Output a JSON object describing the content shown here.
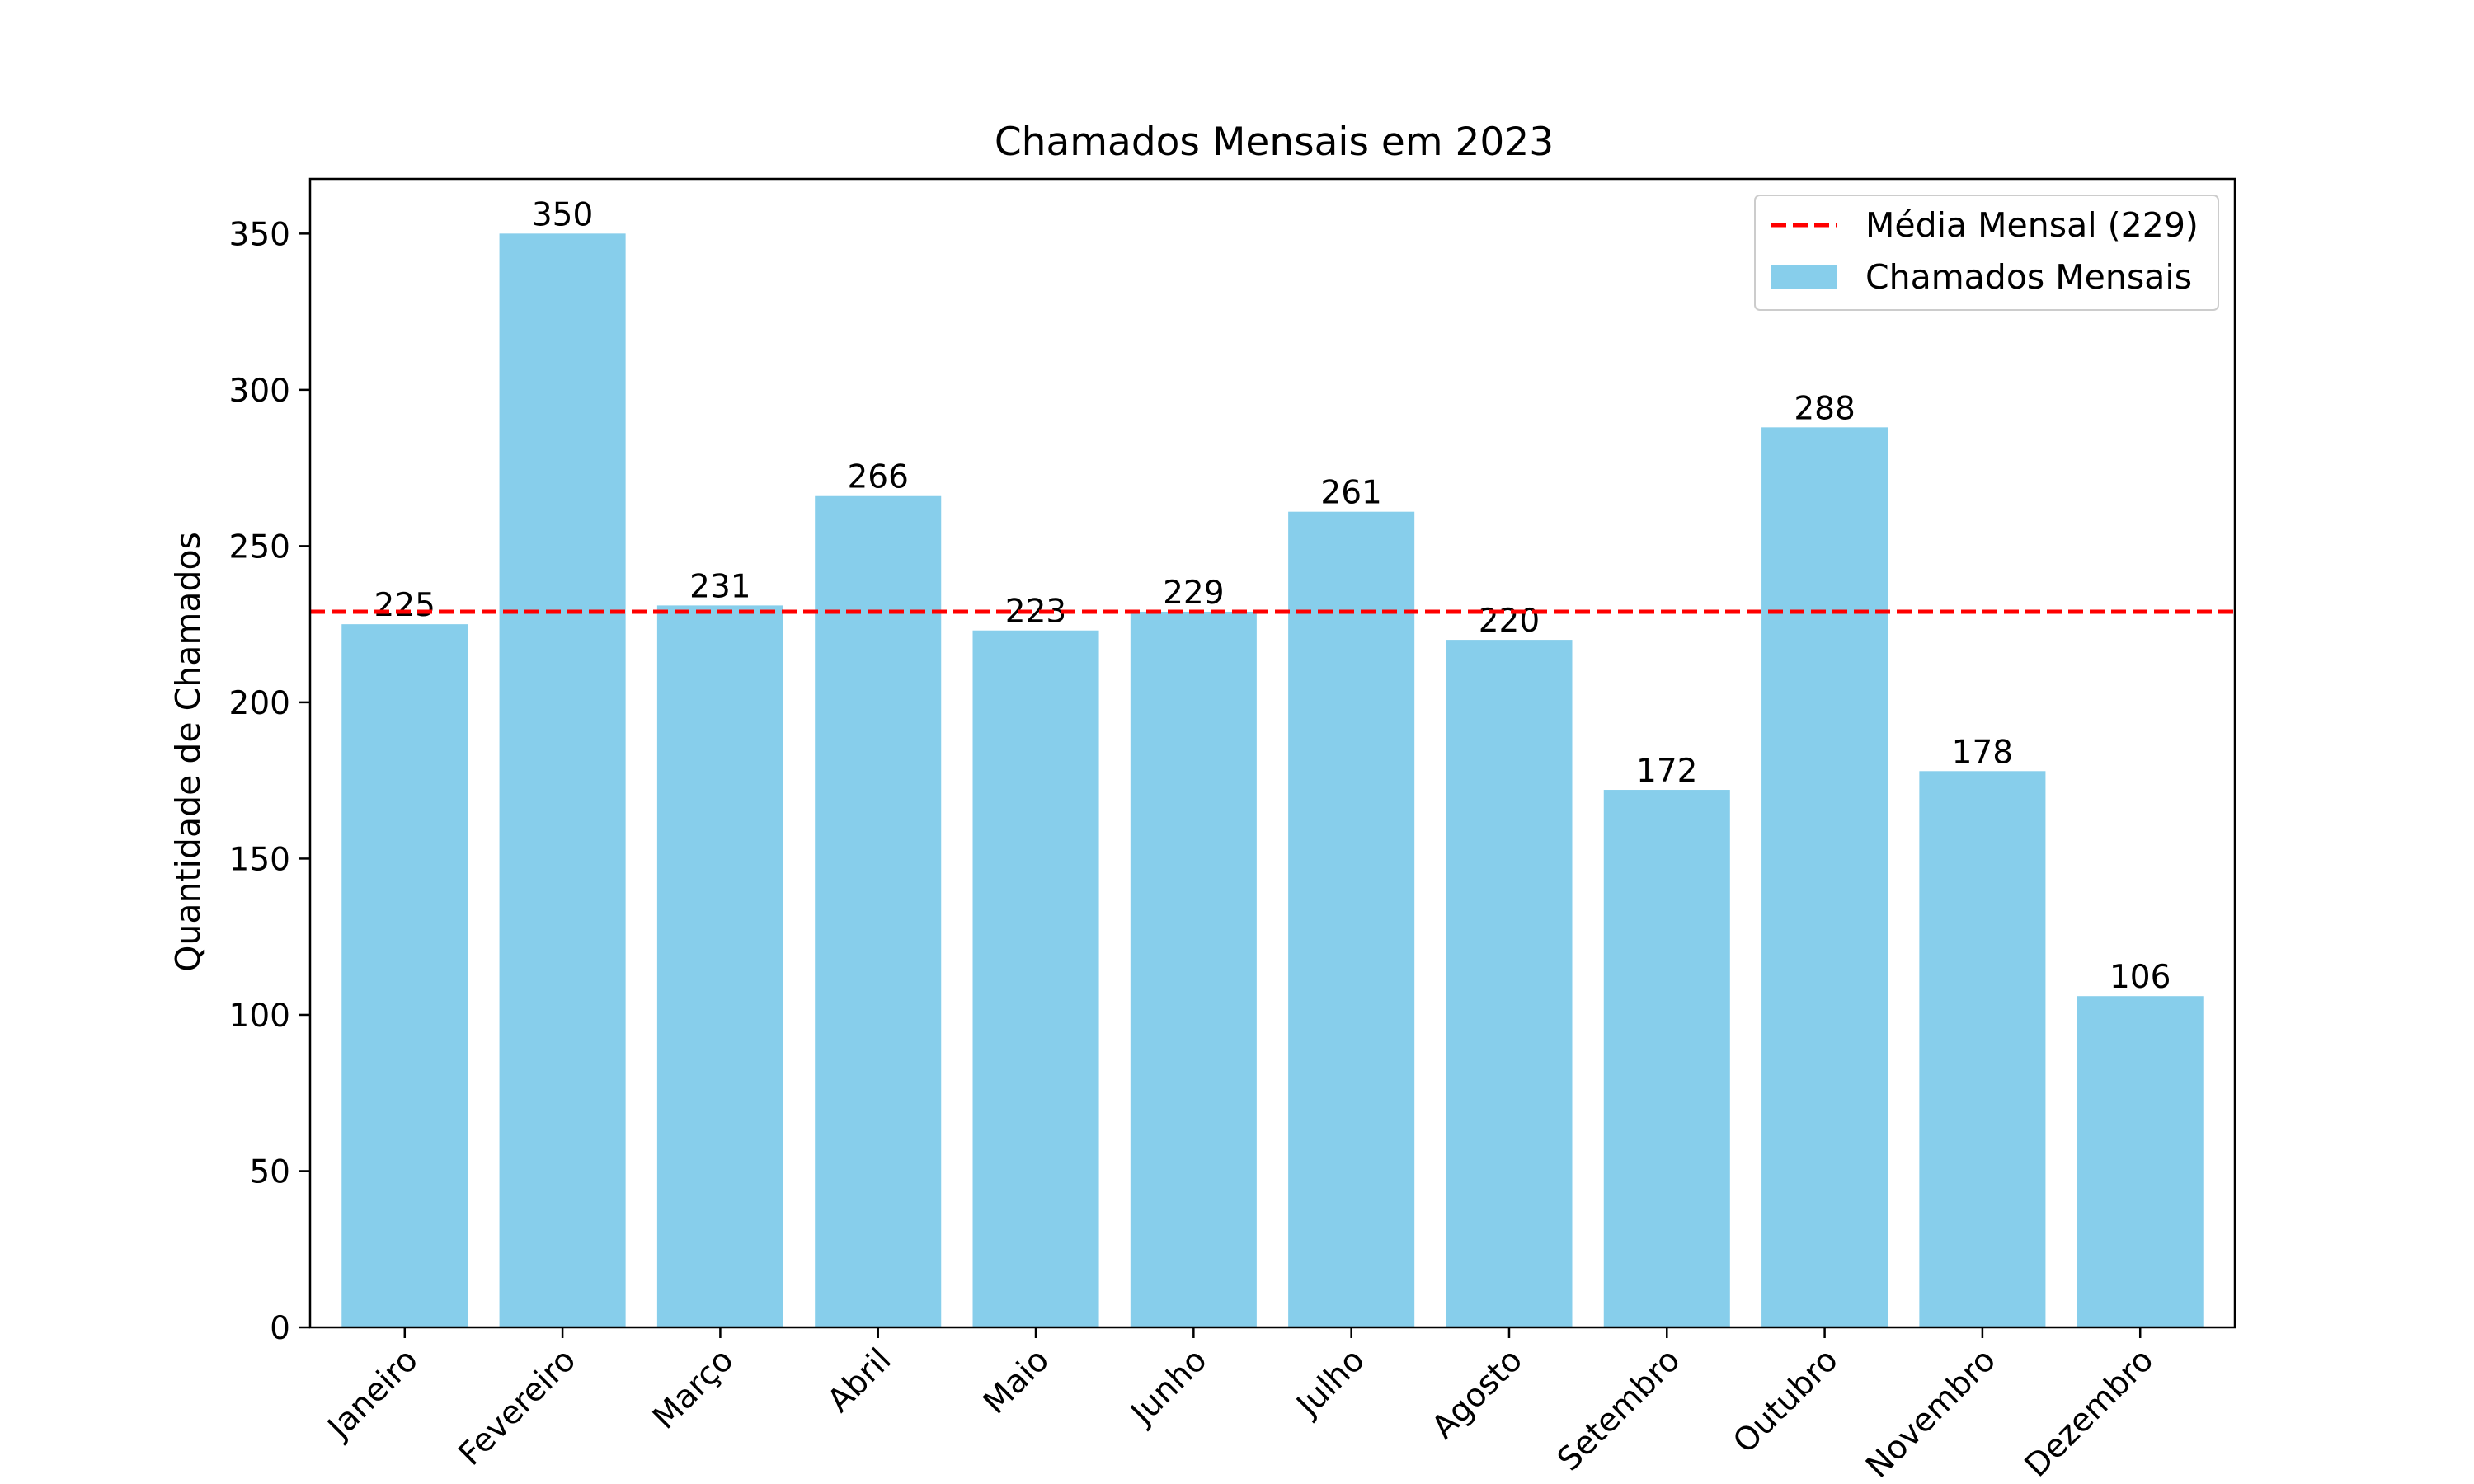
{
  "chart_data": {
    "type": "bar",
    "title": "Chamados Mensais em 2023",
    "xlabel": "",
    "ylabel": "Quantidade de Chamados",
    "categories": [
      "Janeiro",
      "Fevereiro",
      "Março",
      "Abril",
      "Maio",
      "Junho",
      "Julho",
      "Agosto",
      "Setembro",
      "Outubro",
      "Novembro",
      "Dezembro"
    ],
    "series": [
      {
        "name": "Chamados Mensais",
        "values": [
          225,
          350,
          231,
          266,
          223,
          229,
          261,
          220,
          172,
          288,
          178,
          106
        ],
        "color": "#87CEEB"
      }
    ],
    "reference_line": {
      "name": "Média Mensal (229)",
      "value": 229,
      "color": "#FF0000",
      "style": "dashed"
    },
    "ylim": [
      0,
      367.5
    ],
    "yticks": [
      0,
      50,
      100,
      150,
      200,
      250,
      300,
      350
    ],
    "xtick_rotation": -45,
    "grid": false,
    "legend": {
      "placement": "top-right"
    }
  }
}
